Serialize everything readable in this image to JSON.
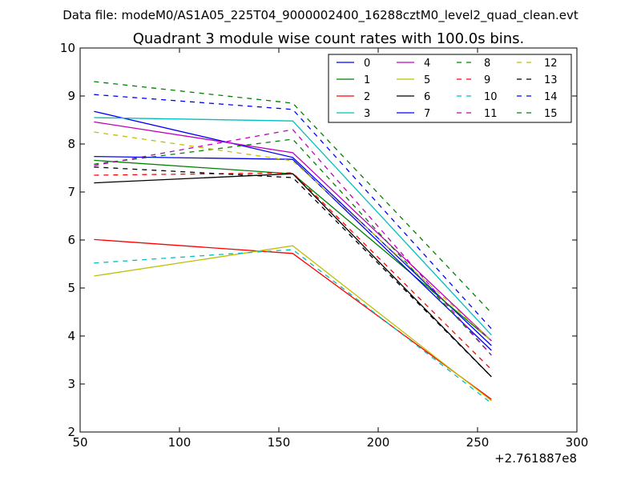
{
  "chart_data": {
    "type": "line",
    "suptitle": "Data file: modeM0/AS1A05_225T04_9000002400_16288cztM0_level2_quad_clean.evt",
    "title": "Quadrant 3 module wise count rates with 100.0s bins.",
    "xlabel": "",
    "ylabel": "",
    "x_offset_label": "+2.761887e8",
    "xlim": [
      50,
      300
    ],
    "ylim": [
      2,
      10
    ],
    "xticks": [
      50,
      100,
      150,
      200,
      250,
      300
    ],
    "yticks": [
      2,
      3,
      4,
      5,
      6,
      7,
      8,
      9,
      10
    ],
    "x": [
      57,
      157,
      257
    ],
    "legend_location": "top-right",
    "series": [
      {
        "name": "0",
        "color": "#0000ff",
        "style": "solid",
        "values": [
          8.68,
          7.72,
          3.8
        ]
      },
      {
        "name": "1",
        "color": "#008000",
        "style": "solid",
        "values": [
          7.66,
          7.38,
          3.9
        ]
      },
      {
        "name": "2",
        "color": "#ff0000",
        "style": "solid",
        "values": [
          6.01,
          5.72,
          2.68
        ]
      },
      {
        "name": "3",
        "color": "#00bfbf",
        "style": "solid",
        "values": [
          8.55,
          8.48,
          4.02
        ]
      },
      {
        "name": "4",
        "color": "#bf00bf",
        "style": "solid",
        "values": [
          8.46,
          7.82,
          3.9
        ]
      },
      {
        "name": "5",
        "color": "#bfbf00",
        "style": "solid",
        "values": [
          5.25,
          5.88,
          2.65
        ]
      },
      {
        "name": "6",
        "color": "#000000",
        "style": "solid",
        "values": [
          7.19,
          7.38,
          3.15
        ]
      },
      {
        "name": "7",
        "color": "#0000ff",
        "style": "solid",
        "values": [
          7.74,
          7.68,
          3.7
        ]
      },
      {
        "name": "8",
        "color": "#008000",
        "style": "dashed",
        "values": [
          7.58,
          8.1,
          3.6
        ]
      },
      {
        "name": "9",
        "color": "#ff0000",
        "style": "dashed",
        "values": [
          7.35,
          7.4,
          3.3
        ]
      },
      {
        "name": "10",
        "color": "#00bfbf",
        "style": "dashed",
        "values": [
          5.52,
          5.8,
          2.6
        ]
      },
      {
        "name": "11",
        "color": "#bf00bf",
        "style": "dashed",
        "values": [
          7.55,
          8.3,
          3.6
        ]
      },
      {
        "name": "12",
        "color": "#bfbf00",
        "style": "dashed",
        "values": [
          8.25,
          7.65,
          3.9
        ]
      },
      {
        "name": "13",
        "color": "#000000",
        "style": "dashed",
        "values": [
          7.52,
          7.3,
          3.15
        ]
      },
      {
        "name": "14",
        "color": "#0000ff",
        "style": "dashed",
        "values": [
          9.03,
          8.72,
          4.15
        ]
      },
      {
        "name": "15",
        "color": "#008000",
        "style": "dashed",
        "values": [
          9.3,
          8.85,
          4.48
        ]
      }
    ]
  }
}
